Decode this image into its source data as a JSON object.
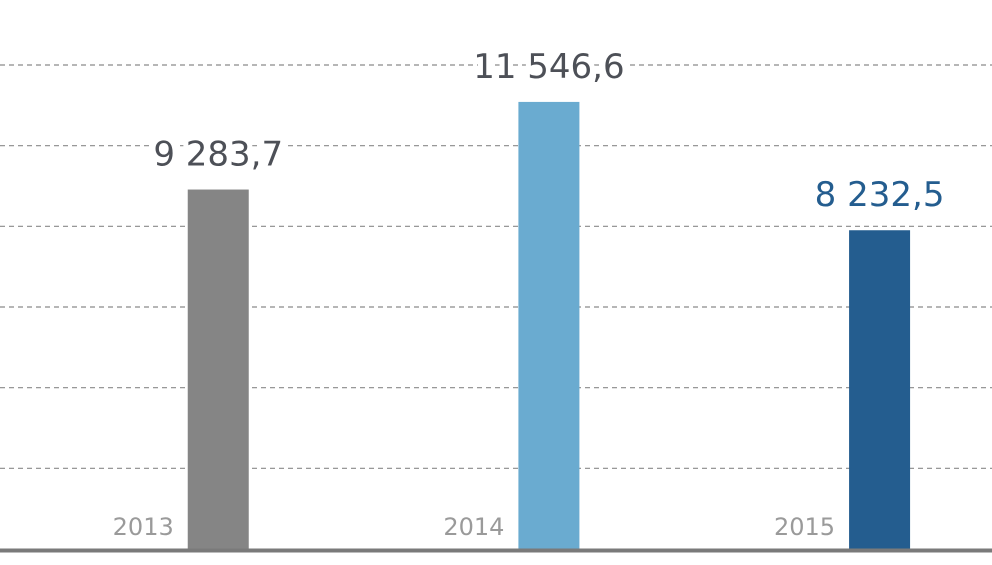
{
  "chart_data": {
    "type": "bar",
    "categories": [
      "2013",
      "2014",
      "2015"
    ],
    "values": [
      9283.7,
      11546.6,
      8232.5
    ],
    "value_labels": [
      "9 283,7",
      "11 546,6",
      "8 232,5"
    ],
    "bar_colors": [
      "#858585",
      "#6aabd0",
      "#245d8f"
    ],
    "value_label_colors": [
      "#4d5057",
      "#4d5057",
      "#245d8f"
    ],
    "ylim": [
      0,
      12500
    ],
    "grid_step": 2083.33,
    "grid": true,
    "gridline_style": "dashed",
    "axis_color": "#7a7a7a",
    "grid_color": "#8a8a8a"
  }
}
